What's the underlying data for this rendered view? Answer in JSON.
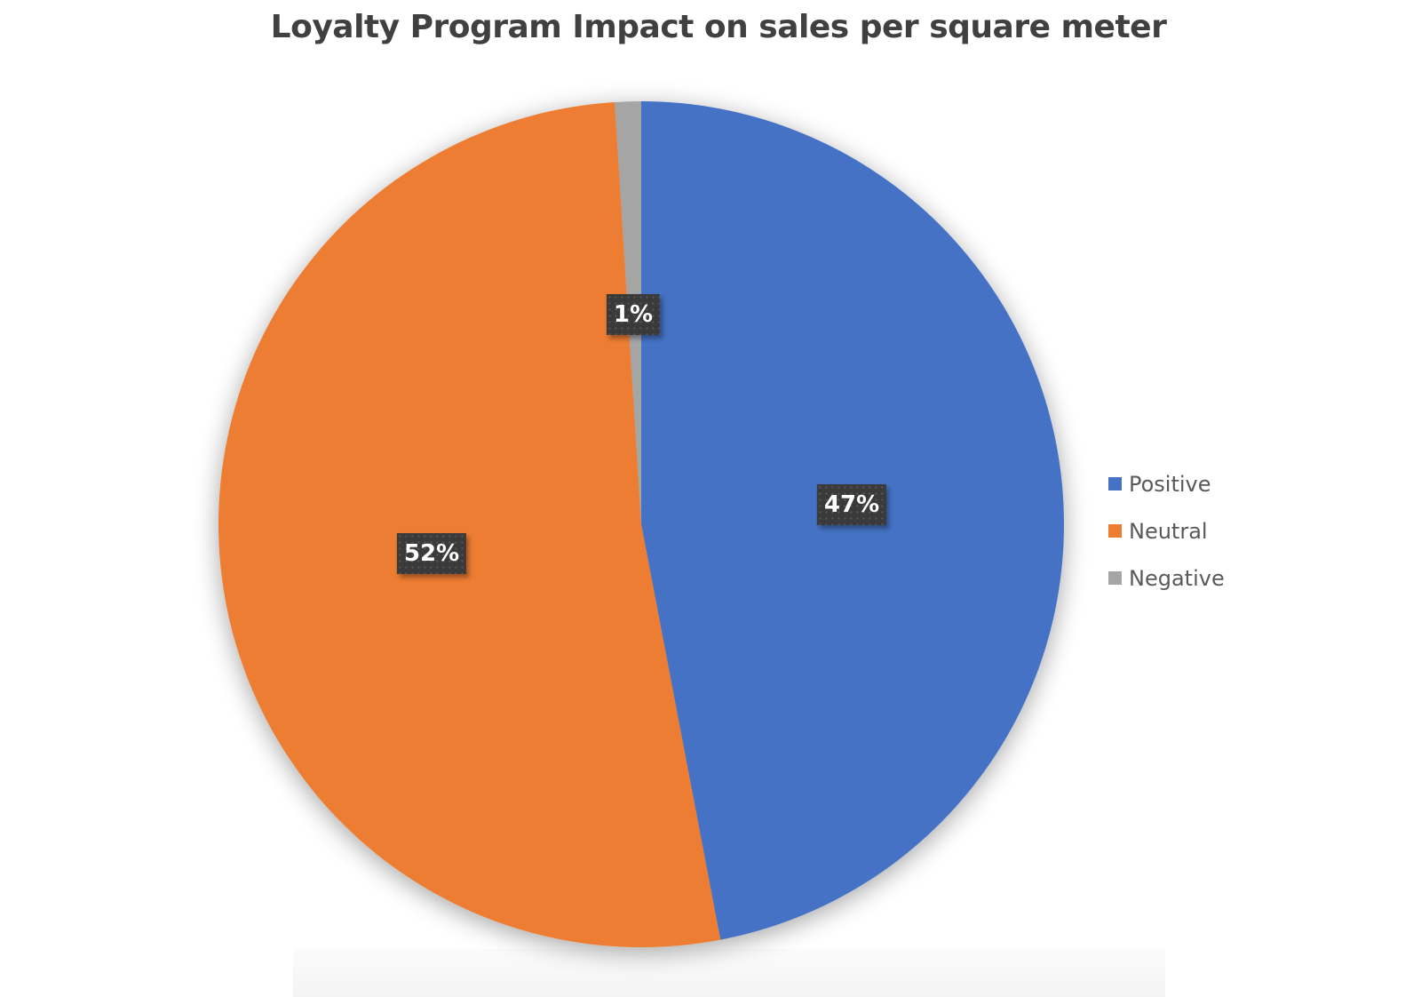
{
  "chart_data": {
    "type": "pie",
    "title": "Loyalty Program Impact on sales per square meter",
    "categories": [
      "Positive",
      "Neutral",
      "Negative"
    ],
    "values": [
      47,
      52,
      1
    ],
    "unit": "%",
    "data_labels": [
      "47%",
      "52%",
      "1%"
    ],
    "colors": [
      "#4472C4",
      "#ED7D31",
      "#A5A5A5"
    ],
    "start_angle_deg": 0,
    "direction": "clockwise",
    "legend_position": "right",
    "xlabel": "",
    "ylabel": ""
  },
  "title": "Loyalty Program Impact on sales per square meter",
  "legend": {
    "items": [
      {
        "label": "Positive",
        "color": "#4472C4"
      },
      {
        "label": "Neutral",
        "color": "#ED7D31"
      },
      {
        "label": "Negative",
        "color": "#A5A5A5"
      }
    ]
  },
  "labels": {
    "positive": "47%",
    "neutral": "52%",
    "negative": "1%"
  }
}
